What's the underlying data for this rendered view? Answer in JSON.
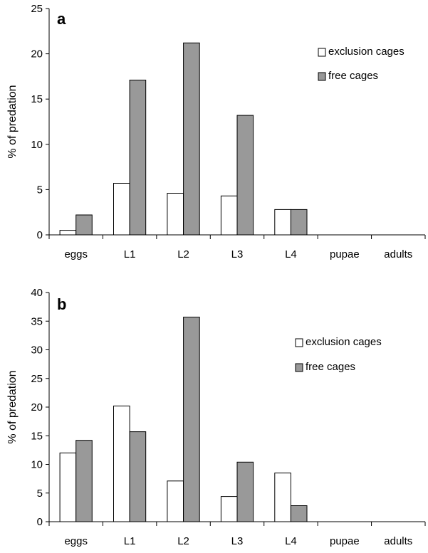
{
  "chart_data": [
    {
      "type": "bar",
      "panel_label": "a",
      "ylabel": "% of predation",
      "xlabel": "",
      "ylim": [
        0,
        25
      ],
      "yticks": [
        0,
        5,
        10,
        15,
        20,
        25
      ],
      "categories": [
        "eggs",
        "L1",
        "L2",
        "L3",
        "L4",
        "pupae",
        "adults"
      ],
      "series": [
        {
          "name": "exclusion cages",
          "color": "#ffffff",
          "values": [
            0.5,
            5.7,
            4.6,
            4.3,
            2.8,
            0,
            0
          ]
        },
        {
          "name": "free cages",
          "color": "#999999",
          "values": [
            2.2,
            17.1,
            21.2,
            13.2,
            2.8,
            0,
            0
          ]
        }
      ],
      "legend": {
        "placement": "top-right"
      },
      "grid": false
    },
    {
      "type": "bar",
      "panel_label": "b",
      "ylabel": "% of predation",
      "xlabel": "",
      "ylim": [
        0,
        40
      ],
      "yticks": [
        0,
        5,
        10,
        15,
        20,
        25,
        30,
        35,
        40
      ],
      "categories": [
        "eggs",
        "L1",
        "L2",
        "L3",
        "L4",
        "pupae",
        "adults"
      ],
      "series": [
        {
          "name": "exclusion cages",
          "color": "#ffffff",
          "values": [
            12.0,
            20.2,
            7.1,
            4.4,
            8.5,
            0,
            0
          ]
        },
        {
          "name": "free cages",
          "color": "#999999",
          "values": [
            14.2,
            15.7,
            35.7,
            10.4,
            2.8,
            0,
            0
          ]
        }
      ],
      "legend": {
        "placement": "top-right"
      },
      "grid": false
    }
  ]
}
